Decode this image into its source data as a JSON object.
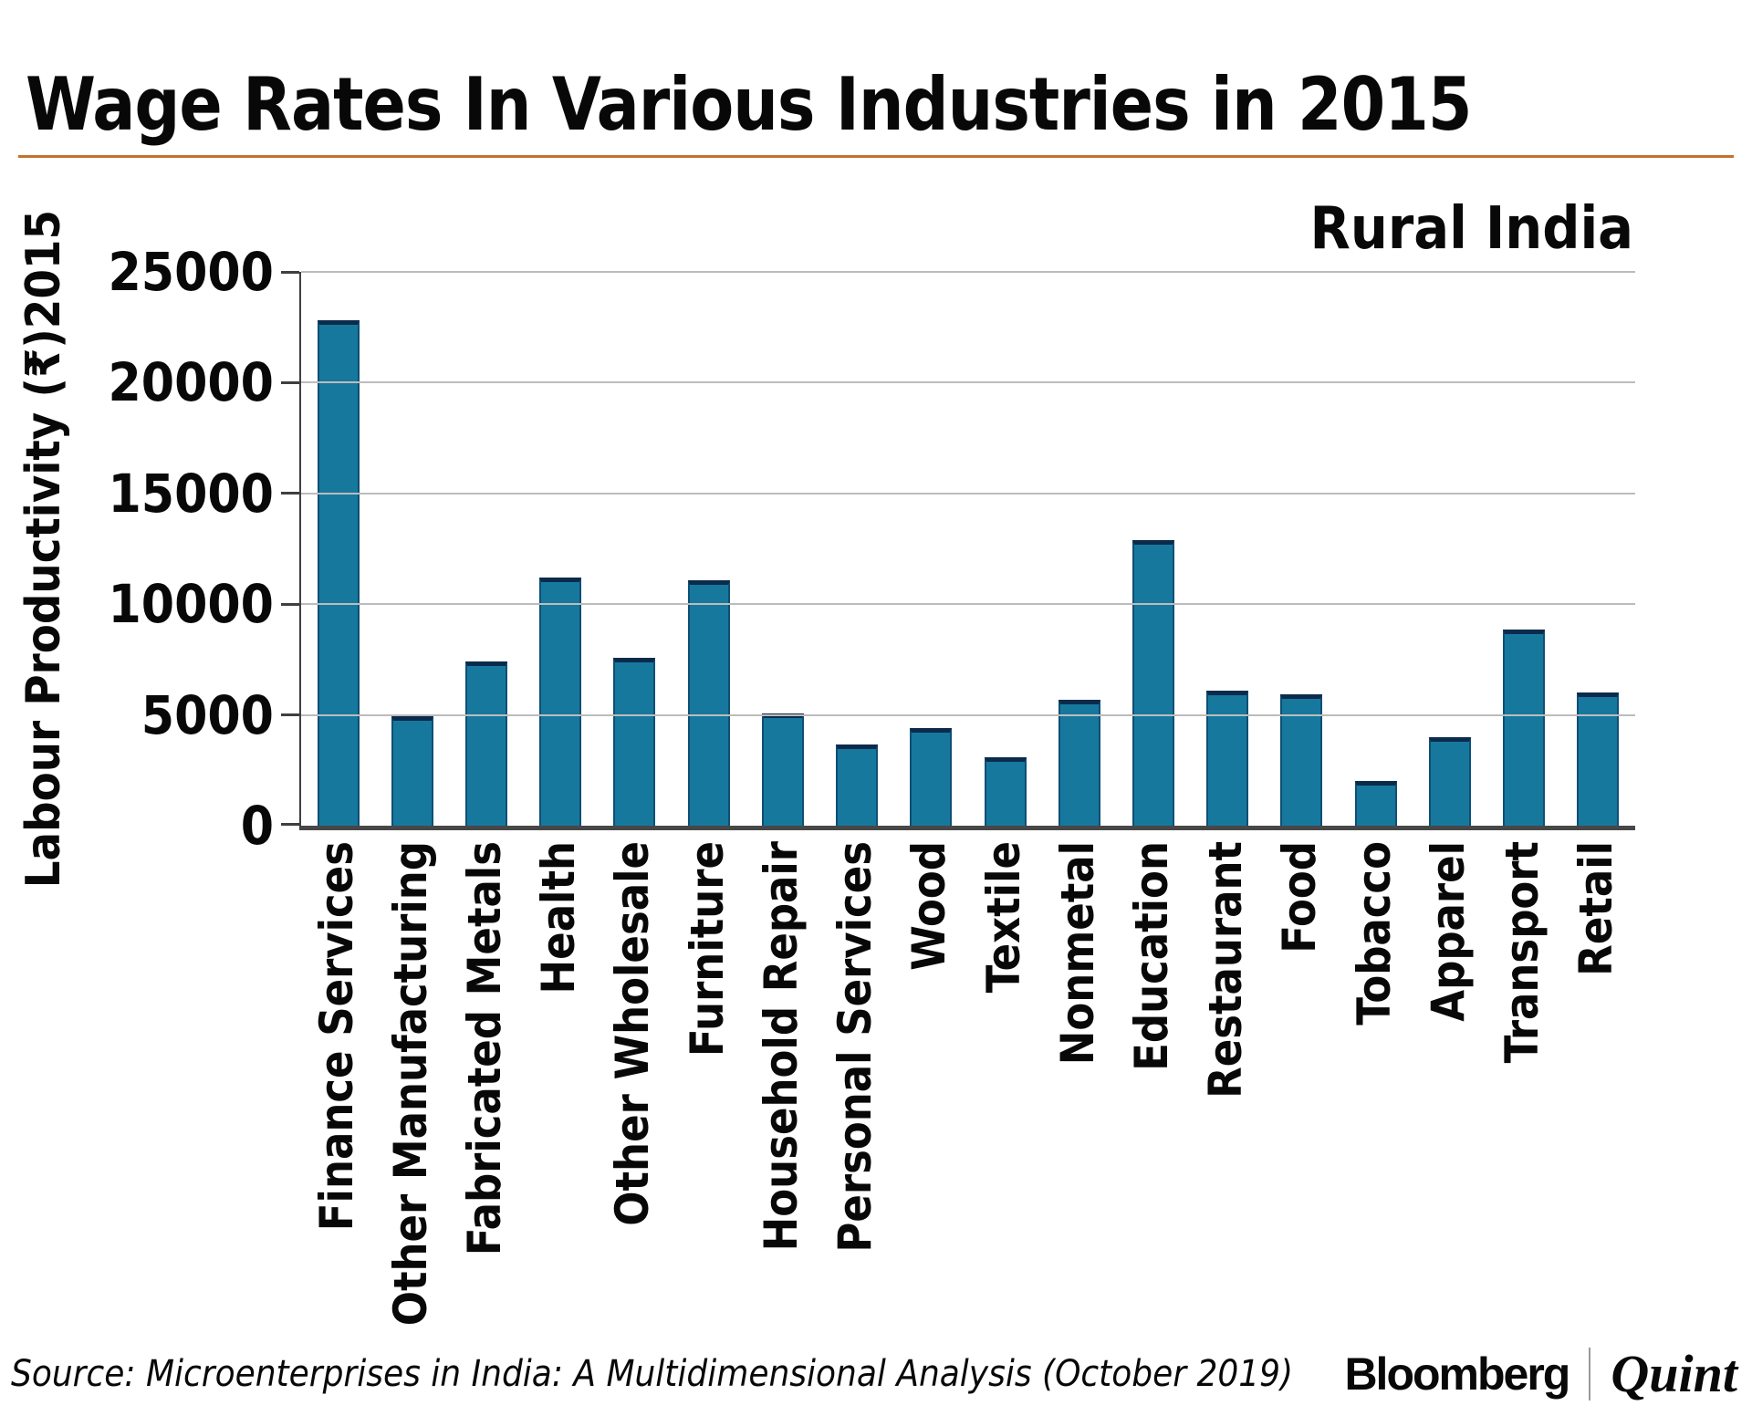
{
  "header": {
    "title": "Wage Rates In Various Industries in 2015"
  },
  "chart_data": {
    "type": "bar",
    "title": "Wage Rates In Various Industries in 2015",
    "annotation": "Rural India",
    "xlabel": "",
    "ylabel": "Labour Productivity (₹)2015",
    "ylim": [
      0,
      25000
    ],
    "yticks": [
      0,
      5000,
      10000,
      15000,
      20000,
      25000
    ],
    "grid": "horizontal",
    "legend": "none",
    "bar_color": "#17789e",
    "bar_border_color": "#0b2b4c",
    "accent_rule_color": "#c4722b",
    "categories": [
      "Finance Services",
      "Other Manufacturing",
      "Fabricated Metals",
      "Health",
      "Other Wholesale",
      "Furniture",
      "Household Repair",
      "Personal Services",
      "Wood",
      "Textile",
      "Nonmetal",
      "Education",
      "Restaurant",
      "Food",
      "Tobacco",
      "Apparel",
      "Transport",
      "Retail"
    ],
    "values": [
      22800,
      4950,
      7400,
      11200,
      7600,
      11100,
      5070,
      3650,
      4400,
      3100,
      5700,
      12900,
      6100,
      5950,
      2000,
      4000,
      8850,
      6000
    ]
  },
  "footer": {
    "source": "Source: Microenterprises in India: A Multidimensional Analysis (October 2019)",
    "brand_primary": "Bloomberg",
    "brand_secondary": "Quint"
  }
}
